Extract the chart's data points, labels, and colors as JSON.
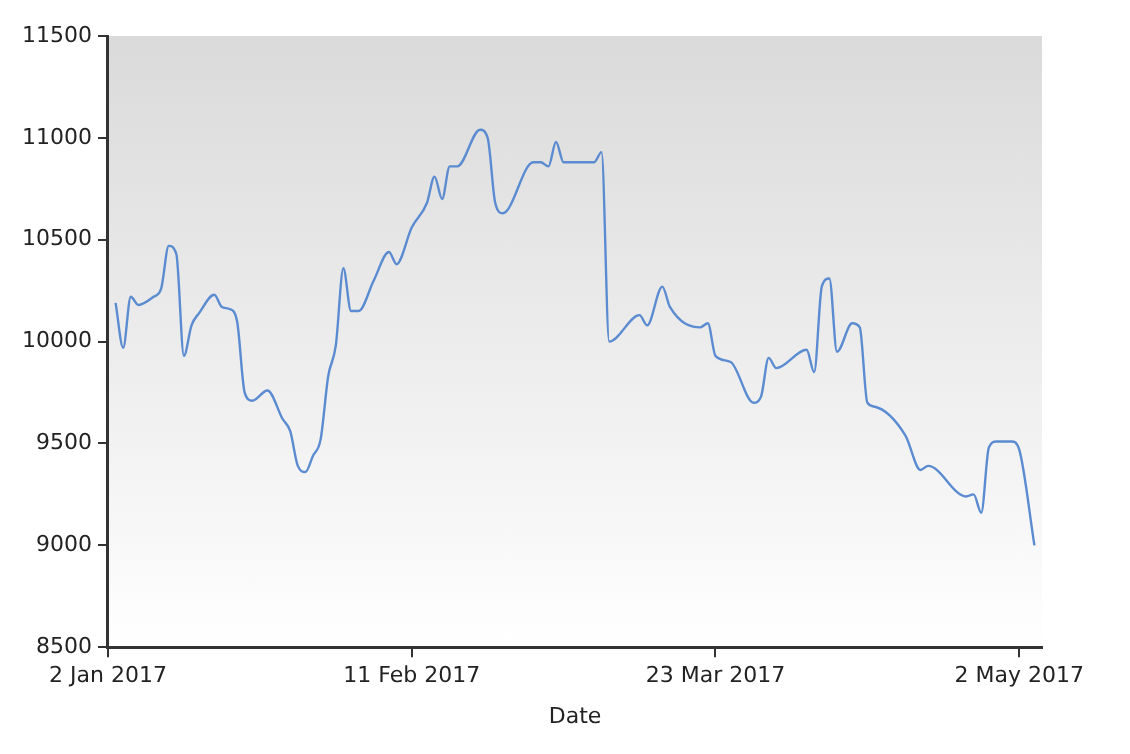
{
  "chart_data": {
    "type": "line",
    "xlabel": "Date",
    "x": [
      "2017-01-03",
      "2017-01-04",
      "2017-01-05",
      "2017-01-06",
      "2017-01-08",
      "2017-01-09",
      "2017-01-10",
      "2017-01-11",
      "2017-01-12",
      "2017-01-13",
      "2017-01-14",
      "2017-01-16",
      "2017-01-17",
      "2017-01-18",
      "2017-01-19",
      "2017-01-20",
      "2017-01-21",
      "2017-01-23",
      "2017-01-25",
      "2017-01-26",
      "2017-01-27",
      "2017-01-28",
      "2017-01-29",
      "2017-01-30",
      "2017-01-31",
      "2017-02-01",
      "2017-02-02",
      "2017-02-03",
      "2017-02-04",
      "2017-02-06",
      "2017-02-08",
      "2017-02-09",
      "2017-02-11",
      "2017-02-13",
      "2017-02-14",
      "2017-02-15",
      "2017-02-16",
      "2017-02-17",
      "2017-02-20",
      "2017-02-21",
      "2017-02-22",
      "2017-02-23",
      "2017-02-27",
      "2017-02-28",
      "2017-03-01",
      "2017-03-02",
      "2017-03-03",
      "2017-03-07",
      "2017-03-08",
      "2017-03-09",
      "2017-03-13",
      "2017-03-14",
      "2017-03-16",
      "2017-03-17",
      "2017-03-21",
      "2017-03-22",
      "2017-03-23",
      "2017-03-25",
      "2017-03-28",
      "2017-03-29",
      "2017-03-30",
      "2017-03-31",
      "2017-04-04",
      "2017-04-05",
      "2017-04-06",
      "2017-04-07",
      "2017-04-08",
      "2017-04-10",
      "2017-04-11",
      "2017-04-12",
      "2017-04-13",
      "2017-04-17",
      "2017-04-19",
      "2017-04-20",
      "2017-04-25",
      "2017-04-26",
      "2017-04-27",
      "2017-04-28",
      "2017-04-29",
      "2017-05-01",
      "2017-05-02",
      "2017-05-04"
    ],
    "series": [
      {
        "color": "#5b8bd0",
        "values": [
          10190,
          9970,
          10220,
          10180,
          10220,
          10260,
          10470,
          10430,
          9930,
          10080,
          10140,
          10230,
          10170,
          10160,
          10100,
          9750,
          9710,
          9760,
          9620,
          9560,
          9390,
          9360,
          9440,
          9520,
          9830,
          9980,
          10360,
          10150,
          10150,
          10300,
          10440,
          10380,
          10560,
          10680,
          10810,
          10700,
          10860,
          10860,
          11040,
          11000,
          10680,
          10630,
          10880,
          10880,
          10860,
          10980,
          10880,
          10880,
          10930,
          10000,
          10130,
          10080,
          10270,
          10170,
          10070,
          10090,
          9930,
          9900,
          9700,
          9730,
          9920,
          9870,
          9960,
          9850,
          10270,
          10310,
          9950,
          10090,
          10070,
          9700,
          9680,
          9540,
          9370,
          9390,
          9240,
          9250,
          9160,
          9480,
          9510,
          9510,
          9470,
          9000
        ]
      }
    ],
    "xlim": [
      "2017-01-02",
      "2017-05-05"
    ],
    "xticks": [
      {
        "value": "2017-01-02",
        "label": "2 Jan 2017"
      },
      {
        "value": "2017-02-11",
        "label": "11 Feb 2017"
      },
      {
        "value": "2017-03-23",
        "label": "23 Mar 2017"
      },
      {
        "value": "2017-05-02",
        "label": "2 May 2017"
      }
    ],
    "ylim": [
      8500,
      11500
    ],
    "yticks": [
      8500,
      9000,
      9500,
      10000,
      10500,
      11000,
      11500
    ],
    "grid": false,
    "legend": false,
    "marker": "none",
    "line_style": "solid"
  }
}
